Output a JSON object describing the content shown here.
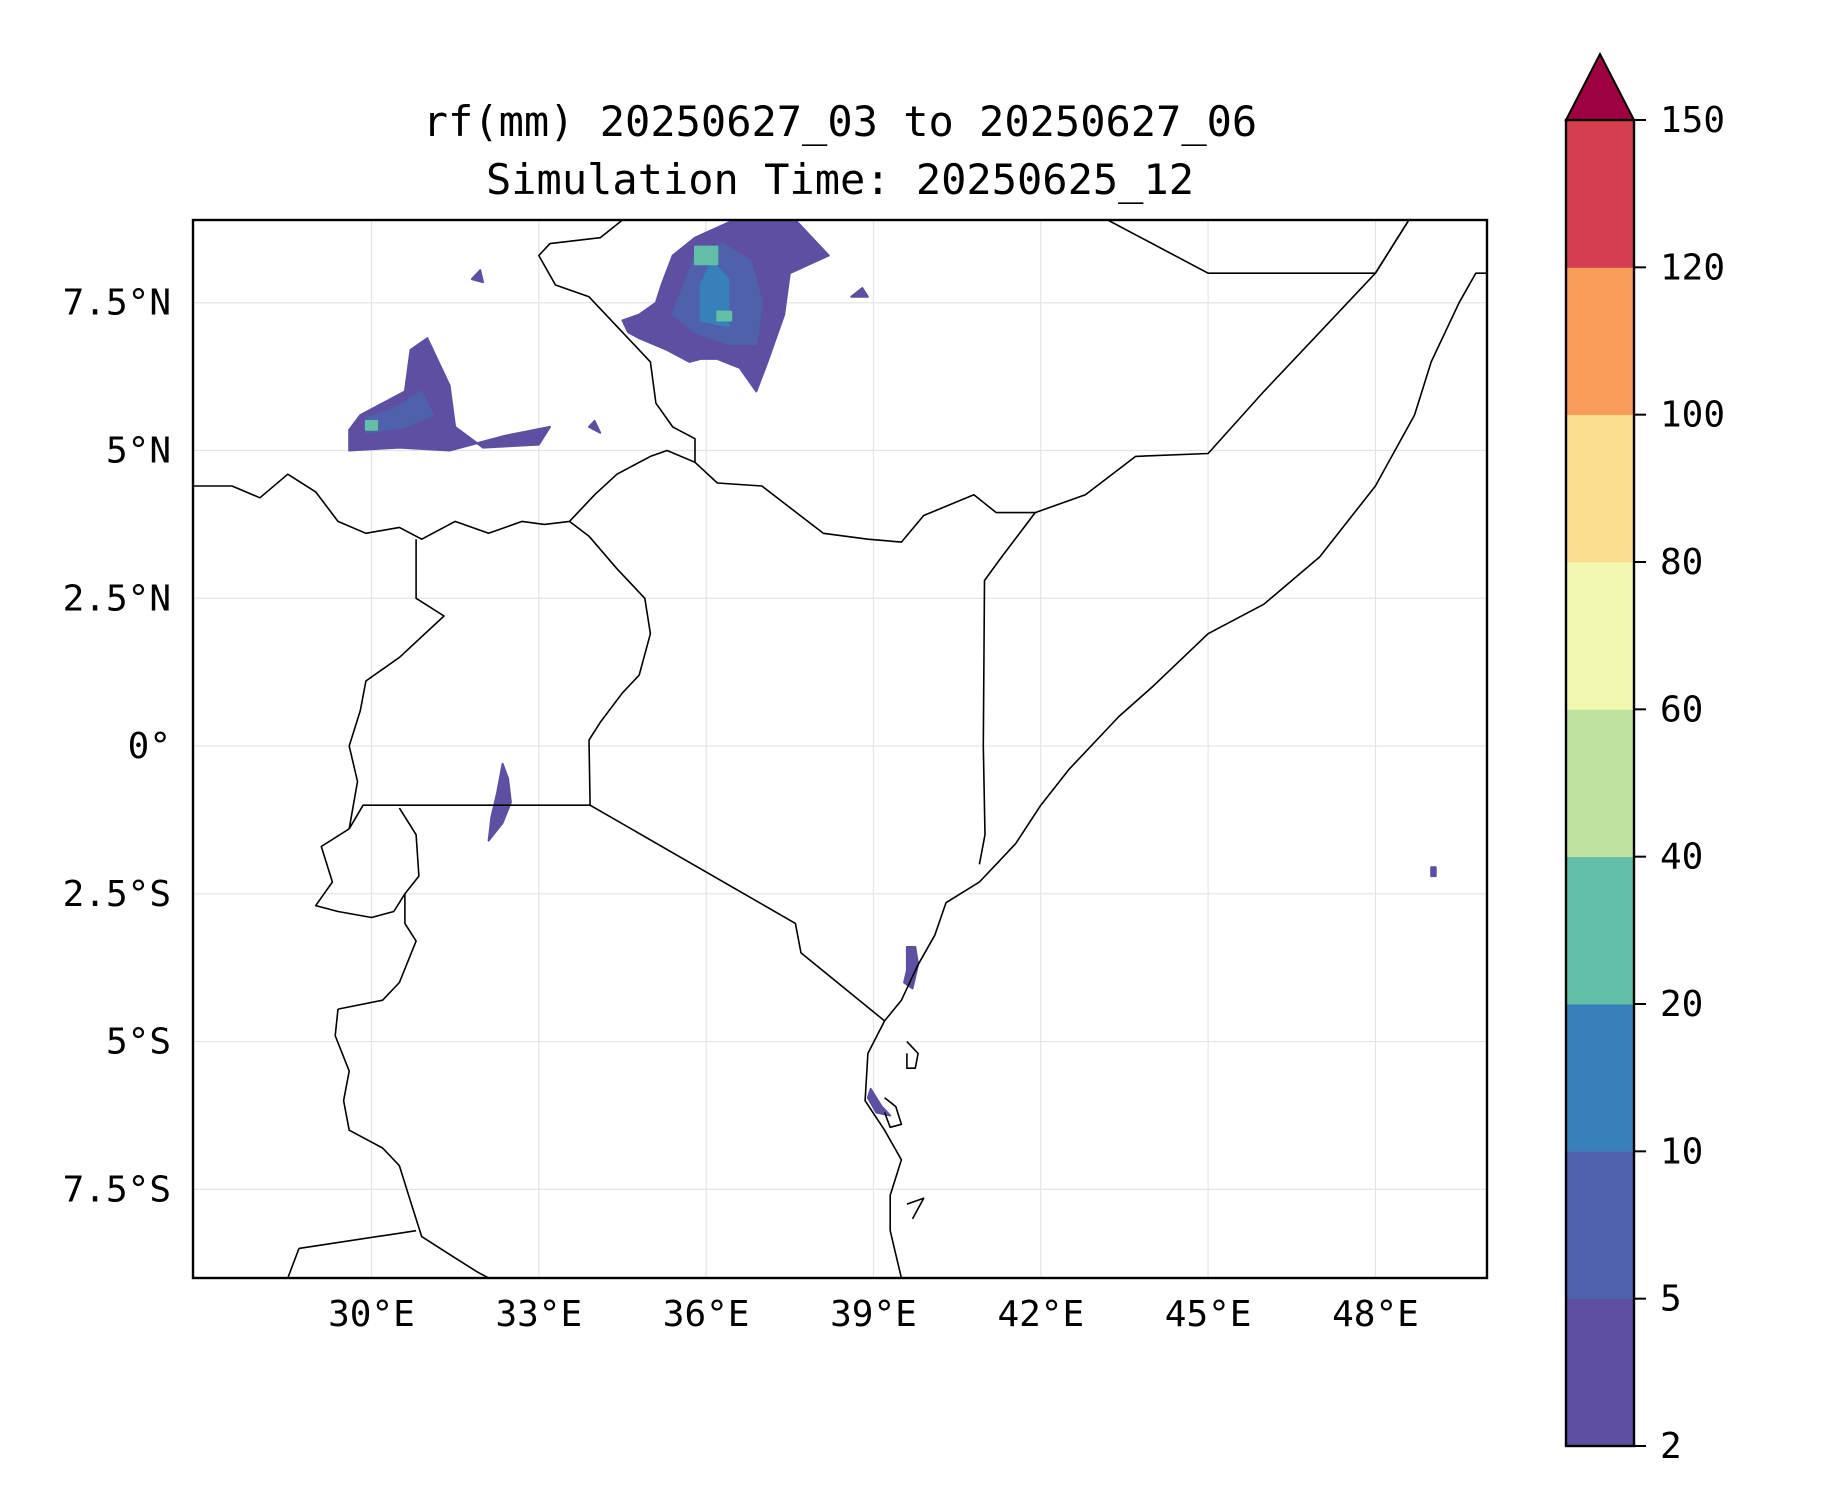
{
  "title": {
    "line1": "rf(mm) 20250627_03 to 20250627_06",
    "line2": "Simulation Time: 20250625_12"
  },
  "map": {
    "lon_range": [
      26.8,
      50.0
    ],
    "lat_range": [
      -9.0,
      8.9
    ],
    "lon_ticks": [
      {
        "value": 30,
        "label": "30°E"
      },
      {
        "value": 33,
        "label": "33°E"
      },
      {
        "value": 36,
        "label": "36°E"
      },
      {
        "value": 39,
        "label": "39°E"
      },
      {
        "value": 42,
        "label": "42°E"
      },
      {
        "value": 45,
        "label": "45°E"
      },
      {
        "value": 48,
        "label": "48°E"
      }
    ],
    "lat_ticks": [
      {
        "value": 7.5,
        "label": "7.5°N"
      },
      {
        "value": 5,
        "label": "5°N"
      },
      {
        "value": 2.5,
        "label": "2.5°N"
      },
      {
        "value": 0,
        "label": "0°"
      },
      {
        "value": -2.5,
        "label": "2.5°S"
      },
      {
        "value": -5,
        "label": "5°S"
      },
      {
        "value": -7.5,
        "label": "7.5°S"
      }
    ],
    "gridlines": true
  },
  "colorbar": {
    "extend": "max",
    "extend_color": "#9e0142",
    "levels": [
      {
        "label": "2",
        "color": "#5e4fa2"
      },
      {
        "label": "5",
        "color": "#4f61aa"
      },
      {
        "label": "10",
        "color": "#3880b9"
      },
      {
        "label": "20",
        "color": "#62bea6"
      },
      {
        "label": "40",
        "color": "#bee3a0"
      },
      {
        "label": "60",
        "color": "#f3f8b0"
      },
      {
        "label": "80",
        "color": "#fbdf90"
      },
      {
        "label": "100",
        "color": "#fa9c5a"
      },
      {
        "label": "120",
        "color": "#d53e4f"
      },
      {
        "label": "150",
        "color": ""
      }
    ]
  },
  "rain_cells": [
    {
      "level": 0,
      "points": [
        [
          29.6,
          5.0
        ],
        [
          30.5,
          5.05
        ],
        [
          31.4,
          5.0
        ],
        [
          32.4,
          5.25
        ],
        [
          33.2,
          5.4
        ],
        [
          33.0,
          5.1
        ],
        [
          32.0,
          5.05
        ],
        [
          31.5,
          5.4
        ],
        [
          31.4,
          6.1
        ],
        [
          31.0,
          6.9
        ],
        [
          30.7,
          6.7
        ],
        [
          30.6,
          6.0
        ],
        [
          29.8,
          5.6
        ],
        [
          29.6,
          5.35
        ]
      ]
    },
    {
      "level": 1,
      "points": [
        [
          29.9,
          5.3
        ],
        [
          30.6,
          5.4
        ],
        [
          31.1,
          5.6
        ],
        [
          30.9,
          6.0
        ],
        [
          30.4,
          5.7
        ],
        [
          29.9,
          5.55
        ]
      ]
    },
    {
      "level": 3,
      "points": [
        [
          29.9,
          5.35
        ],
        [
          30.1,
          5.35
        ],
        [
          30.1,
          5.5
        ],
        [
          29.9,
          5.5
        ]
      ]
    },
    {
      "level": 0,
      "points": [
        [
          34.8,
          6.9
        ],
        [
          35.3,
          6.7
        ],
        [
          35.7,
          6.5
        ],
        [
          35.9,
          6.55
        ],
        [
          36.2,
          6.55
        ],
        [
          36.6,
          6.4
        ],
        [
          36.9,
          6.0
        ],
        [
          37.1,
          6.5
        ],
        [
          37.4,
          7.3
        ],
        [
          37.5,
          8.0
        ],
        [
          38.2,
          8.3
        ],
        [
          37.6,
          8.9
        ],
        [
          36.5,
          8.9
        ],
        [
          35.8,
          8.6
        ],
        [
          35.4,
          8.3
        ],
        [
          35.2,
          7.8
        ],
        [
          35.1,
          7.5
        ],
        [
          34.8,
          7.3
        ],
        [
          34.5,
          7.2
        ],
        [
          34.6,
          7.0
        ]
      ]
    },
    {
      "level": 1,
      "points": [
        [
          35.4,
          7.3
        ],
        [
          35.8,
          7.0
        ],
        [
          36.4,
          6.8
        ],
        [
          36.9,
          6.8
        ],
        [
          37.0,
          7.5
        ],
        [
          36.8,
          8.2
        ],
        [
          36.3,
          8.5
        ],
        [
          35.8,
          8.3
        ],
        [
          35.6,
          7.8
        ]
      ]
    },
    {
      "level": 2,
      "points": [
        [
          35.9,
          7.2
        ],
        [
          36.4,
          7.1
        ],
        [
          36.4,
          7.9
        ],
        [
          36.1,
          8.2
        ],
        [
          35.9,
          7.8
        ]
      ]
    },
    {
      "level": 3,
      "points": [
        [
          35.8,
          8.15
        ],
        [
          36.2,
          8.15
        ],
        [
          36.2,
          8.45
        ],
        [
          35.8,
          8.45
        ]
      ]
    },
    {
      "level": 3,
      "points": [
        [
          36.2,
          7.2
        ],
        [
          36.45,
          7.2
        ],
        [
          36.45,
          7.35
        ],
        [
          36.2,
          7.35
        ]
      ]
    },
    {
      "level": 0,
      "points": [
        [
          32.1,
          -1.6
        ],
        [
          32.35,
          -1.3
        ],
        [
          32.5,
          -0.95
        ],
        [
          32.45,
          -0.55
        ],
        [
          32.35,
          -0.3
        ],
        [
          32.25,
          -0.8
        ],
        [
          32.15,
          -1.2
        ]
      ]
    },
    {
      "level": 0,
      "points": [
        [
          39.55,
          -4.0
        ],
        [
          39.7,
          -4.1
        ],
        [
          39.8,
          -3.7
        ],
        [
          39.75,
          -3.4
        ],
        [
          39.6,
          -3.4
        ],
        [
          39.6,
          -3.8
        ]
      ]
    },
    {
      "level": 0,
      "points": [
        [
          38.95,
          -5.8
        ],
        [
          39.15,
          -6.1
        ],
        [
          39.3,
          -6.25
        ],
        [
          39.05,
          -6.2
        ],
        [
          38.9,
          -5.95
        ]
      ]
    },
    {
      "level": 0,
      "points": [
        [
          33.9,
          5.4
        ],
        [
          34.0,
          5.5
        ],
        [
          34.1,
          5.3
        ]
      ]
    },
    {
      "level": 0,
      "points": [
        [
          31.8,
          7.9
        ],
        [
          31.95,
          8.05
        ],
        [
          32.0,
          7.85
        ]
      ]
    },
    {
      "level": 0,
      "points": [
        [
          38.6,
          7.6
        ],
        [
          38.8,
          7.75
        ],
        [
          38.9,
          7.6
        ]
      ]
    },
    {
      "level": 0,
      "points": [
        [
          49.0,
          -2.2
        ],
        [
          49.08,
          -2.2
        ],
        [
          49.08,
          -2.05
        ],
        [
          49.0,
          -2.05
        ]
      ]
    }
  ],
  "borders": [
    [
      [
        26.8,
        4.4
      ],
      [
        27.5,
        4.4
      ],
      [
        28.0,
        4.2
      ],
      [
        28.5,
        4.6
      ],
      [
        29.0,
        4.3
      ],
      [
        29.4,
        3.8
      ],
      [
        29.9,
        3.6
      ],
      [
        30.5,
        3.7
      ],
      [
        30.9,
        3.5
      ],
      [
        31.5,
        3.8
      ],
      [
        32.1,
        3.6
      ],
      [
        32.7,
        3.8
      ],
      [
        33.1,
        3.75
      ],
      [
        33.55,
        3.8
      ],
      [
        34.0,
        4.25
      ],
      [
        34.4,
        4.6
      ],
      [
        35.0,
        4.9
      ],
      [
        35.3,
        5.0
      ],
      [
        35.8,
        4.8
      ],
      [
        36.2,
        4.45
      ],
      [
        37.0,
        4.4
      ],
      [
        38.1,
        3.6
      ],
      [
        38.9,
        3.5
      ],
      [
        39.5,
        3.45
      ],
      [
        39.9,
        3.9
      ],
      [
        40.8,
        4.25
      ],
      [
        41.2,
        3.95
      ],
      [
        41.9,
        3.95
      ]
    ],
    [
      [
        33.55,
        3.8
      ],
      [
        33.9,
        3.55
      ],
      [
        34.4,
        3.0
      ],
      [
        34.9,
        2.5
      ],
      [
        35.0,
        1.9
      ],
      [
        34.8,
        1.2
      ],
      [
        34.5,
        0.9
      ],
      [
        34.1,
        0.4
      ],
      [
        33.9,
        0.1
      ],
      [
        33.92,
        -1.0
      ]
    ],
    [
      [
        29.6,
        -1.4
      ],
      [
        29.85,
        -1.0
      ],
      [
        30.5,
        -1.0
      ],
      [
        33.92,
        -1.0
      ],
      [
        37.6,
        -3.0
      ],
      [
        37.7,
        -3.5
      ],
      [
        39.2,
        -4.65
      ]
    ],
    [
      [
        30.5,
        -1.05
      ],
      [
        30.8,
        -1.5
      ],
      [
        30.85,
        -2.2
      ],
      [
        30.6,
        -2.5
      ],
      [
        30.4,
        -2.8
      ],
      [
        30.0,
        -2.9
      ],
      [
        29.4,
        -2.8
      ],
      [
        29.0,
        -2.7
      ],
      [
        29.3,
        -2.3
      ],
      [
        29.1,
        -1.7
      ],
      [
        29.6,
        -1.4
      ]
    ],
    [
      [
        30.6,
        -2.5
      ],
      [
        30.6,
        -3.0
      ],
      [
        30.8,
        -3.3
      ],
      [
        30.5,
        -4.0
      ],
      [
        30.2,
        -4.3
      ],
      [
        29.4,
        -4.45
      ]
    ],
    [
      [
        29.6,
        -1.4
      ],
      [
        29.75,
        -0.6
      ],
      [
        29.6,
        0.0
      ],
      [
        29.8,
        0.6
      ],
      [
        29.9,
        1.1
      ],
      [
        30.5,
        1.5
      ],
      [
        31.3,
        2.2
      ],
      [
        30.8,
        2.5
      ],
      [
        30.8,
        3.0
      ],
      [
        30.8,
        3.5
      ]
    ],
    [
      [
        29.4,
        -4.45
      ],
      [
        29.35,
        -4.9
      ],
      [
        29.6,
        -5.5
      ],
      [
        29.5,
        -6.0
      ],
      [
        29.6,
        -6.5
      ],
      [
        30.2,
        -6.8
      ],
      [
        30.5,
        -7.1
      ],
      [
        30.7,
        -7.7
      ],
      [
        30.9,
        -8.3
      ],
      [
        31.4,
        -8.6
      ],
      [
        31.9,
        -8.9
      ],
      [
        32.1,
        -9.0
      ]
    ],
    [
      [
        28.7,
        -8.5
      ],
      [
        30.8,
        -8.2
      ]
    ],
    [
      [
        28.7,
        -8.5
      ],
      [
        28.5,
        -9.0
      ]
    ],
    [
      [
        40.9,
        -2.0
      ],
      [
        41.0,
        -1.5
      ],
      [
        40.97,
        0.0
      ],
      [
        40.99,
        2.8
      ],
      [
        41.3,
        3.2
      ],
      [
        41.9,
        3.95
      ],
      [
        42.8,
        4.25
      ],
      [
        43.7,
        4.9
      ],
      [
        45.0,
        4.95
      ],
      [
        46.0,
        6.0
      ],
      [
        47.0,
        7.0
      ],
      [
        48.0,
        8.0
      ],
      [
        48.6,
        8.9
      ]
    ],
    [
      [
        43.2,
        8.9
      ],
      [
        45.0,
        8.0
      ],
      [
        46.0,
        8.0
      ],
      [
        47.0,
        8.0
      ],
      [
        48.0,
        8.0
      ],
      [
        48.6,
        8.9
      ]
    ],
    [
      [
        34.5,
        8.9
      ],
      [
        34.1,
        8.6
      ],
      [
        33.2,
        8.5
      ],
      [
        33.0,
        8.3
      ],
      [
        33.3,
        7.8
      ],
      [
        33.9,
        7.6
      ],
      [
        34.5,
        7.0
      ],
      [
        35.0,
        6.5
      ],
      [
        35.1,
        5.8
      ],
      [
        35.4,
        5.4
      ],
      [
        35.8,
        5.2
      ],
      [
        35.8,
        4.8
      ]
    ]
  ],
  "coastlines": [
    [
      [
        41.55,
        -1.65
      ],
      [
        41.2,
        -2.0
      ],
      [
        40.9,
        -2.3
      ],
      [
        40.3,
        -2.65
      ],
      [
        40.1,
        -3.2
      ],
      [
        39.8,
        -3.7
      ],
      [
        39.5,
        -4.3
      ],
      [
        39.2,
        -4.65
      ],
      [
        38.9,
        -5.2
      ],
      [
        38.85,
        -6.0
      ],
      [
        39.2,
        -6.5
      ],
      [
        39.5,
        -7.0
      ],
      [
        39.3,
        -7.6
      ],
      [
        39.3,
        -8.2
      ],
      [
        39.4,
        -8.6
      ],
      [
        39.5,
        -9.0
      ]
    ],
    [
      [
        41.55,
        -1.65
      ],
      [
        42.0,
        -1.0
      ],
      [
        42.5,
        -0.4
      ],
      [
        43.4,
        0.5
      ],
      [
        44.0,
        1.0
      ],
      [
        45.0,
        1.9
      ],
      [
        46.0,
        2.4
      ],
      [
        47.0,
        3.2
      ],
      [
        48.0,
        4.4
      ],
      [
        48.7,
        5.6
      ],
      [
        49.0,
        6.5
      ],
      [
        49.5,
        7.5
      ],
      [
        49.8,
        8.0
      ],
      [
        50.0,
        8.0
      ]
    ],
    [
      [
        39.6,
        -5.0
      ],
      [
        39.8,
        -5.2
      ],
      [
        39.75,
        -5.45
      ],
      [
        39.6,
        -5.45
      ],
      [
        39.6,
        -5.2
      ]
    ],
    [
      [
        39.2,
        -5.95
      ],
      [
        39.4,
        -6.1
      ],
      [
        39.5,
        -6.4
      ],
      [
        39.3,
        -6.45
      ],
      [
        39.2,
        -6.2
      ]
    ],
    [
      [
        39.6,
        -7.75
      ],
      [
        39.9,
        -7.65
      ],
      [
        39.7,
        -8.0
      ]
    ]
  ]
}
